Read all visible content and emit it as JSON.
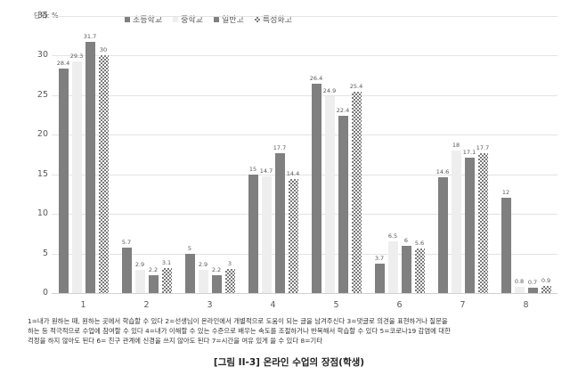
{
  "chart_data": {
    "type": "bar",
    "title": "[그림 II-3] 온라인 수업의 장점(학생)",
    "unit_label": "단위: %",
    "xlabel": "",
    "ylabel": "",
    "ylim": [
      0,
      35
    ],
    "yticks": [
      0,
      5,
      10,
      15,
      20,
      25,
      30,
      35
    ],
    "grid": true,
    "legend_position": "top",
    "categories": [
      "1",
      "2",
      "3",
      "4",
      "5",
      "6",
      "7",
      "8"
    ],
    "series": [
      {
        "name": "초등학교",
        "pattern": "solid",
        "values": [
          28.4,
          5.7,
          5,
          15,
          26.4,
          3.7,
          14.6,
          12
        ]
      },
      {
        "name": "중학교",
        "pattern": "dots",
        "values": [
          29.3,
          2.9,
          2.9,
          14.7,
          24.9,
          6.5,
          18,
          0.8
        ]
      },
      {
        "name": "일반고",
        "pattern": "dense",
        "values": [
          31.7,
          2.2,
          2.2,
          17.7,
          22.4,
          6,
          17.1,
          0.7
        ]
      },
      {
        "name": "특성화고",
        "pattern": "check",
        "values": [
          30,
          3.1,
          3,
          14.4,
          25.4,
          5.6,
          17.7,
          0.9
        ]
      }
    ],
    "annotations": [
      "1=내가 원하는 때, 원하는 곳에서 학습할 수 있다 2=선생님이 온라인에서 개별적으로 도움이 되는 글을 남겨주신다 3=댓글로 의견을 표현하거나 질문을 하는 등 적극적으로 수업에 참여할 수 있다 4=내가 이해할 수 있는 수준으로 배우는 속도를 조절하거나 반복해서 학습할 수 있다 5=코로나19 감염에 대한 걱정을 하지 않아도 된다 6= 친구 관계에 신경을 쓰지 않아도 된다 7=시간을 여유 있게 쓸 수 있다 8=기타"
    ]
  },
  "labels": {
    "unit": "단위: %",
    "legend": [
      "초등학교",
      "중학교",
      "일반고",
      "특성화고"
    ],
    "footnote_lines": [
      "1=내가 원하는 때, 원하는 곳에서 학습할 수 있다  2=선생님이 온라인에서 개별적으로 도움이 되는 글을 남겨주신다  3=댓글로 의견을 표현하거나 질문을",
      "하는 등 적극적으로 수업에 참여할 수 있다  4=내가 이해할 수 있는 수준으로 배우는 속도를 조절하거나 반복해서 학습할 수 있다 5=코로나19 감염에 대한",
      "걱정을 하지 않아도 된다 6= 친구 관계에 신경을 쓰지 않아도 된다 7=시간을 여유 있게 쓸 수 있다 8=기타"
    ],
    "caption": "[그림 II-3] 온라인 수업의 장점(학생)"
  }
}
